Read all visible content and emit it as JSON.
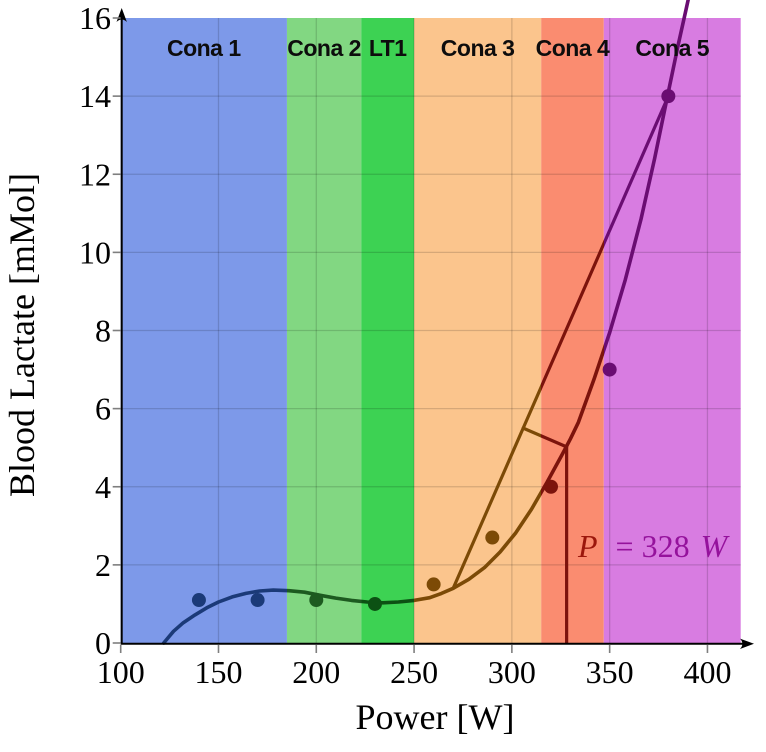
{
  "chart_data": {
    "type": "scatter",
    "title": "",
    "xlabel": "Power [W]",
    "ylabel": "Blood Lactate [mMol]",
    "xlim": [
      100,
      417
    ],
    "ylim": [
      0,
      16
    ],
    "x_ticks": [
      100,
      150,
      200,
      250,
      300,
      350,
      400
    ],
    "y_ticks": [
      0,
      2,
      4,
      6,
      8,
      10,
      12,
      14,
      16
    ],
    "grid": true,
    "legend": "none",
    "zones": [
      {
        "label": "Cona 1",
        "from": 100,
        "to": 185,
        "fill": "#7d99e9",
        "dark": "#1b3a78"
      },
      {
        "label": "Cona 2",
        "from": 185,
        "to": 223,
        "fill": "#82d782",
        "dark": "#1d5a20"
      },
      {
        "label": "LT1",
        "from": 223,
        "to": 250,
        "fill": "#3dd253",
        "dark": "#0c5113"
      },
      {
        "label": "Cona 3",
        "from": 250,
        "to": 315,
        "fill": "#fbc58d",
        "dark": "#7c4a06"
      },
      {
        "label": "Cona 4",
        "from": 315,
        "to": 347,
        "fill": "#fa8c70",
        "dark": "#7c130c"
      },
      {
        "label": "Cona 5",
        "from": 347,
        "to": 417,
        "fill": "#d87ce1",
        "dark": "#6a0d72"
      }
    ],
    "points": [
      [
        140,
        1.1
      ],
      [
        170,
        1.1
      ],
      [
        200,
        1.1
      ],
      [
        230,
        1.0
      ],
      [
        260,
        1.5
      ],
      [
        290,
        2.7
      ],
      [
        320,
        4.0
      ],
      [
        350,
        7.0
      ],
      [
        380,
        14.0
      ]
    ],
    "fit_curve": [
      [
        122,
        0
      ],
      [
        127,
        0.3
      ],
      [
        132,
        0.52
      ],
      [
        138,
        0.72
      ],
      [
        144,
        0.9
      ],
      [
        150,
        1.05
      ],
      [
        157,
        1.18
      ],
      [
        164,
        1.27
      ],
      [
        171,
        1.33
      ],
      [
        178,
        1.355
      ],
      [
        186,
        1.34
      ],
      [
        194,
        1.3
      ],
      [
        202,
        1.22
      ],
      [
        210,
        1.15
      ],
      [
        218,
        1.09
      ],
      [
        226,
        1.05
      ],
      [
        234,
        1.03
      ],
      [
        242,
        1.05
      ],
      [
        250,
        1.09
      ],
      [
        258,
        1.16
      ],
      [
        264,
        1.27
      ],
      [
        270,
        1.4
      ],
      [
        278,
        1.63
      ],
      [
        286,
        1.93
      ],
      [
        294,
        2.33
      ],
      [
        302,
        2.82
      ],
      [
        310,
        3.42
      ],
      [
        318,
        4.12
      ],
      [
        326,
        4.85
      ],
      [
        330,
        5.23
      ],
      [
        334,
        5.65
      ],
      [
        342,
        6.75
      ],
      [
        350,
        7.95
      ],
      [
        358,
        9.3
      ],
      [
        366,
        10.85
      ],
      [
        373,
        12.4
      ],
      [
        380,
        14.1
      ],
      [
        385,
        15.3
      ],
      [
        389,
        16.2
      ],
      [
        390.5,
        16.55
      ]
    ],
    "threshold": {
      "power_w": 328,
      "label_text": "P = 328W",
      "label_parts": {
        "p": "P",
        "eq": "= 328",
        "w": "W"
      },
      "label_color_p": "#9c170c",
      "label_color_rest": "#95129c",
      "chord": [
        [
          270,
          1.4
        ],
        [
          380,
          14.0
        ]
      ],
      "perpendicular": [
        [
          305.8,
          5.5
        ],
        [
          328,
          5.02
        ]
      ],
      "vline": {
        "x": 328,
        "top": 5.02
      }
    },
    "colors": {
      "axis": "#000000",
      "tick": "#7f7f7f",
      "grid": "rgba(0,0,0,0.15)"
    }
  }
}
